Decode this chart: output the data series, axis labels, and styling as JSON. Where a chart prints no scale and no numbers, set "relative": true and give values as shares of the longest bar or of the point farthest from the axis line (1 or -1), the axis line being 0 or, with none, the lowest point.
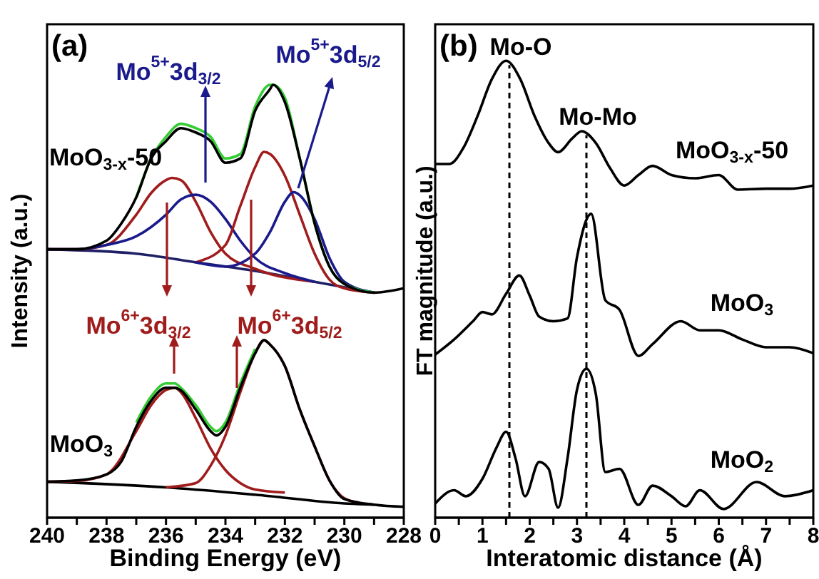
{
  "chart_data": [
    {
      "type": "line",
      "relative": true,
      "marker": "none",
      "xlabel": "Binding Energy (eV)",
      "ylabel": "Intensity (a.u.)",
      "xlim": [
        240,
        228
      ],
      "xticks": [
        240,
        {
          "value": 239,
          "label": null
        },
        238,
        {
          "value": 237,
          "label": null
        },
        236,
        {
          "value": 235,
          "label": null
        },
        234,
        {
          "value": 233,
          "label": null
        },
        232,
        {
          "value": 231,
          "label": null
        },
        230,
        {
          "value": 229,
          "label": null
        },
        228
      ],
      "series": [
        {
          "color": "#1f1f66",
          "x": [
            240,
            237,
            235,
            233,
            231,
            229
          ],
          "values": [
            0.62,
            0.61,
            0.59,
            0.57,
            0.545,
            0.52
          ]
        },
        {
          "color": "#a01c1c",
          "x": [
            240,
            239,
            238,
            237,
            236.5,
            236,
            235.8,
            235.5,
            235,
            234.5,
            234,
            233,
            231
          ],
          "values": [
            0.62,
            0.62,
            0.63,
            0.7,
            0.75,
            0.78,
            0.785,
            0.78,
            0.73,
            0.66,
            0.61,
            0.575,
            0.545
          ]
        },
        {
          "color": "#1a1a8c",
          "x": [
            240,
            239,
            238,
            237,
            236,
            235.5,
            235,
            234.5,
            234,
            233.5,
            233,
            232,
            231
          ],
          "values": [
            0.62,
            0.62,
            0.63,
            0.65,
            0.7,
            0.735,
            0.746,
            0.73,
            0.69,
            0.64,
            0.6,
            0.565,
            0.545
          ]
        },
        {
          "color": "#a01c1c",
          "x": [
            235,
            234,
            233.5,
            233,
            232.7,
            232.5,
            232,
            231.5,
            231,
            230.5,
            230,
            229
          ],
          "values": [
            0.59,
            0.63,
            0.72,
            0.81,
            0.845,
            0.84,
            0.79,
            0.7,
            0.61,
            0.55,
            0.53,
            0.52
          ]
        },
        {
          "color": "#1a1a8c",
          "x": [
            235,
            234,
            233,
            232.5,
            232,
            231.7,
            231.5,
            231,
            230.5,
            230,
            229
          ],
          "values": [
            0.59,
            0.58,
            0.61,
            0.66,
            0.73,
            0.752,
            0.745,
            0.69,
            0.6,
            0.545,
            0.52
          ]
        },
        {
          "color": "#33cc33",
          "x": [
            237,
            236.5,
            236,
            235.5,
            235,
            234.5,
            234,
            233.5,
            233,
            232.5,
            232.4,
            232,
            231.5,
            231,
            230.5,
            230,
            229
          ],
          "values": [
            0.74,
            0.83,
            0.88,
            0.91,
            0.9,
            0.88,
            0.83,
            0.84,
            0.95,
            1.0,
            1.0,
            0.97,
            0.83,
            0.68,
            0.58,
            0.54,
            0.52
          ]
        },
        {
          "color": "#000000",
          "x": [
            240,
            239,
            238,
            237.5,
            237,
            236.5,
            236,
            235.5,
            235,
            234.5,
            234,
            233.5,
            233,
            232.5,
            232.4,
            232,
            231.5,
            231,
            230.5,
            230,
            229,
            228
          ],
          "values": [
            0.62,
            0.62,
            0.64,
            0.68,
            0.74,
            0.83,
            0.87,
            0.9,
            0.89,
            0.87,
            0.82,
            0.83,
            0.94,
            0.99,
            1.0,
            0.96,
            0.83,
            0.68,
            0.58,
            0.54,
            0.52,
            0.53
          ]
        },
        {
          "color": "#000000",
          "x": [
            240,
            236,
            233,
            230,
            229
          ],
          "values": [
            0.083,
            0.07,
            0.053,
            0.033,
            0.03
          ]
        },
        {
          "color": "#a01c1c",
          "x": [
            240,
            239,
            238,
            237,
            236.5,
            236,
            235.7,
            235.5,
            235,
            234.5,
            234,
            233.5,
            233,
            232
          ],
          "values": [
            0.083,
            0.085,
            0.1,
            0.2,
            0.26,
            0.295,
            0.3,
            0.29,
            0.23,
            0.16,
            0.11,
            0.08,
            0.065,
            0.058
          ]
        },
        {
          "color": "#a01c1c",
          "x": [
            236,
            235,
            234.5,
            234,
            233.5,
            233,
            232.7,
            232.5,
            232,
            231.5,
            231,
            230.5,
            230,
            229.5
          ],
          "values": [
            0.07,
            0.08,
            0.12,
            0.19,
            0.29,
            0.38,
            0.41,
            0.4,
            0.35,
            0.25,
            0.165,
            0.086,
            0.045,
            0.035
          ]
        },
        {
          "color": "#33cc33",
          "x": [
            237,
            236.5,
            236,
            235.7,
            235.5,
            235,
            234.5,
            234.3,
            234,
            233.5,
            233
          ],
          "values": [
            0.22,
            0.28,
            0.31,
            0.31,
            0.3,
            0.26,
            0.21,
            0.2,
            0.22,
            0.31,
            0.39
          ]
        },
        {
          "color": "#000000",
          "x": [
            240,
            239,
            238,
            237.5,
            237,
            236.5,
            236,
            235.7,
            235.5,
            235,
            234.5,
            234.3,
            234,
            233.5,
            233,
            232.7,
            232.5,
            232,
            231.5,
            231,
            230.5,
            230,
            229,
            228
          ],
          "values": [
            0.083,
            0.086,
            0.1,
            0.13,
            0.21,
            0.27,
            0.3,
            0.3,
            0.294,
            0.25,
            0.2,
            0.19,
            0.21,
            0.3,
            0.38,
            0.41,
            0.4,
            0.35,
            0.25,
            0.165,
            0.086,
            0.043,
            0.03,
            0.025
          ]
        }
      ],
      "annotations": [
        "(a)",
        "MoO$_{3-x}$-50",
        "MoO$_{3}$",
        "Mo$^{5+}$3d$_{3/2}$",
        "Mo$^{5+}$3d$_{5/2}$",
        "Mo$^{6+}$3d$_{3/2}$",
        "Mo$^{6+}$3d$_{5/2}$"
      ]
    },
    {
      "type": "line",
      "relative": true,
      "marker": "none",
      "xlabel": "Interatomic distance (Å)",
      "ylabel": "FT magnitude (a.u.)",
      "xlim": [
        0,
        8
      ],
      "xticks": [
        0,
        {
          "value": 0.5,
          "label": null
        },
        1,
        {
          "value": 1.5,
          "label": null
        },
        2,
        {
          "value": 2.5,
          "label": null
        },
        3,
        {
          "value": 3.5,
          "label": null
        },
        4,
        {
          "value": 4.5,
          "label": null
        },
        5,
        {
          "value": 5.5,
          "label": null
        },
        6,
        {
          "value": 6.5,
          "label": null
        },
        7,
        {
          "value": 7.5,
          "label": null
        },
        8
      ],
      "series": [
        {
          "color": "#000000",
          "x": [
            0,
            0.3,
            0.6,
            0.9,
            1.2,
            1.5,
            1.8,
            2.1,
            2.4,
            2.6,
            2.9,
            3.1,
            3.4,
            3.7,
            4.0,
            4.3,
            4.6,
            5.0,
            5.5,
            6.0,
            6.4,
            7.0,
            7.5,
            8
          ],
          "values": [
            0.774,
            0.774,
            0.81,
            0.88,
            0.96,
            1.0,
            0.96,
            0.88,
            0.82,
            0.8,
            0.83,
            0.846,
            0.82,
            0.765,
            0.727,
            0.75,
            0.77,
            0.75,
            0.743,
            0.75,
            0.718,
            0.72,
            0.72,
            0.727
          ]
        },
        {
          "color": "#000000",
          "x": [
            0,
            0.4,
            0.8,
            1.0,
            1.2,
            1.5,
            1.78,
            2.0,
            2.2,
            2.5,
            2.8,
            3.0,
            3.3,
            3.6,
            3.9,
            4.3,
            4.6,
            5.2,
            5.6,
            6.0,
            6.5,
            7.0,
            7.5,
            8
          ],
          "values": [
            0.357,
            0.39,
            0.43,
            0.45,
            0.445,
            0.49,
            0.53,
            0.486,
            0.44,
            0.43,
            0.436,
            0.57,
            0.665,
            0.476,
            0.455,
            0.354,
            0.38,
            0.43,
            0.41,
            0.41,
            0.39,
            0.373,
            0.373,
            0.36
          ]
        },
        {
          "color": "#000000",
          "x": [
            0,
            0.4,
            0.65,
            1.0,
            1.3,
            1.5,
            1.7,
            1.9,
            2.2,
            2.4,
            2.6,
            2.8,
            3.0,
            3.2,
            3.4,
            3.6,
            3.9,
            4.3,
            4.6,
            5.0,
            5.3,
            5.6,
            6.1,
            6.8,
            7.4,
            8
          ],
          "values": [
            0.031,
            0.06,
            0.047,
            0.085,
            0.154,
            0.188,
            0.13,
            0.047,
            0.122,
            0.107,
            0.022,
            0.13,
            0.28,
            0.326,
            0.27,
            0.1,
            0.107,
            0.028,
            0.07,
            0.047,
            0.025,
            0.06,
            0.019,
            0.078,
            0.047,
            0.06
          ]
        }
      ],
      "ref_lines": [
        {
          "axis": "x",
          "value": 1.57,
          "label": "Mo-O",
          "line_style": "dashed"
        },
        {
          "axis": "x",
          "value": 3.2,
          "label": "Mo-Mo",
          "line_style": "dashed"
        }
      ],
      "annotations": [
        "(b)",
        "MoO$_{3-x}$-50",
        "MoO$_{3}$",
        "MoO$_{2}$"
      ]
    }
  ]
}
